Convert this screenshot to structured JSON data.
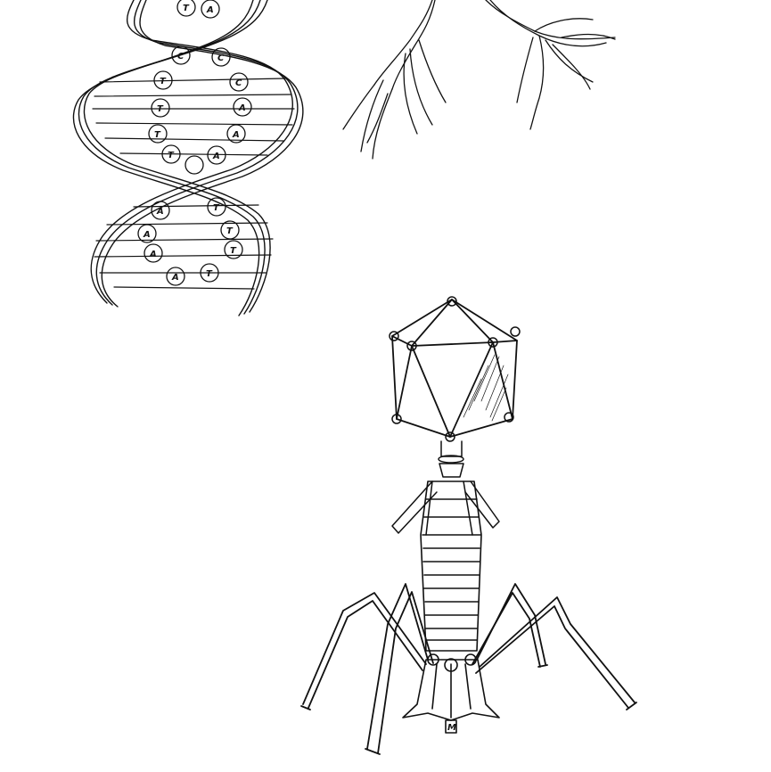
{
  "drawing": {
    "subjects": [
      "dna-double-helix",
      "neuron-dendrites",
      "bacteriophage"
    ],
    "ink_color": "#111111",
    "paper_color": "#ffffff"
  },
  "dna": {
    "left_bases": [
      "T",
      "T",
      "T",
      "T",
      "T",
      "A",
      "A",
      "A",
      "A"
    ],
    "right_bases": [
      "A",
      "C",
      "C",
      "A",
      "A",
      "A",
      "A",
      "T",
      "T",
      "T"
    ],
    "top_bases": [
      "T",
      "A"
    ]
  },
  "phage": {
    "baseplate_label": "M"
  }
}
